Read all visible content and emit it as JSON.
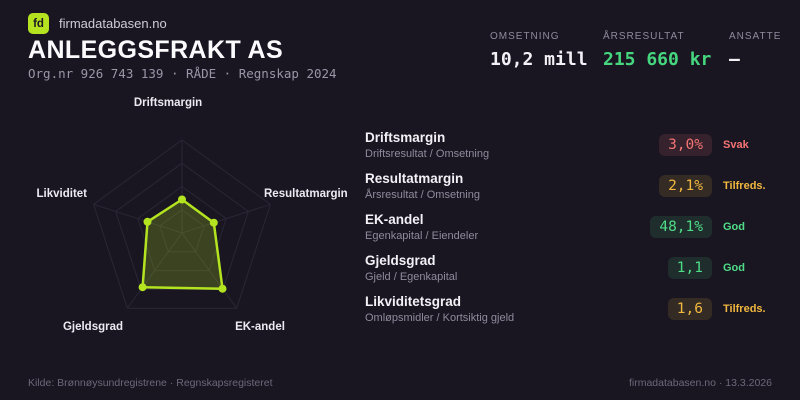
{
  "header": {
    "brand": {
      "logo_text": "fd",
      "site_name": "firmadatabasen.no"
    },
    "company_name": "ANLEGGSFRAKT AS",
    "org_line": "Org.nr 926 743 139  ·  RÅDE  ·  Regnskap 2024",
    "stats": [
      {
        "label": "OMSETNING",
        "value": "10,2 mill",
        "color": "#f2f1f5"
      },
      {
        "label": "ÅRSRESULTAT",
        "value": "215 660 kr",
        "color": "#45d67e"
      },
      {
        "label": "ANSATTE",
        "value": "–",
        "color": "#f2f1f5"
      }
    ]
  },
  "chart_data": {
    "type": "radar",
    "title": "",
    "categories": [
      "Driftsmargin",
      "Resultatmargin",
      "EK-andel",
      "Gjeldsgrad",
      "Likviditet"
    ],
    "values_normalized": [
      0.36,
      0.36,
      0.74,
      0.72,
      0.39
    ],
    "value_range": [
      0,
      1
    ],
    "rings": 4,
    "grid": "on",
    "legend": "none",
    "line_color": "#b4e420",
    "fill_color": "rgba(180,228,32,0.22)",
    "grid_color": "#2a2735",
    "label_color": "#eceaf1"
  },
  "metrics": [
    {
      "name": "Driftsmargin",
      "formula": "Driftsresultat / Omsetning",
      "value": "3,0%",
      "rating": "Svak",
      "status": "bad"
    },
    {
      "name": "Resultatmargin",
      "formula": "Årsresultat / Omsetning",
      "value": "2,1%",
      "rating": "Tilfreds.",
      "status": "ok"
    },
    {
      "name": "EK-andel",
      "formula": "Egenkapital / Eiendeler",
      "value": "48,1%",
      "rating": "God",
      "status": "good"
    },
    {
      "name": "Gjeldsgrad",
      "formula": "Gjeld / Egenkapital",
      "value": "1,1",
      "rating": "God",
      "status": "good"
    },
    {
      "name": "Likviditetsgrad",
      "formula": "Omløpsmidler / Kortsiktig gjeld",
      "value": "1,6",
      "rating": "Tilfreds.",
      "status": "ok"
    }
  ],
  "footer": {
    "source": "Kilde: Brønnøysundregistrene · Regnskapsregisteret",
    "site": "firmadatabasen.no · 13.3.2026"
  },
  "colors": {
    "accent": "#b4e420",
    "good": "#4fdc87",
    "ok": "#f1b73e",
    "bad": "#f47474"
  }
}
